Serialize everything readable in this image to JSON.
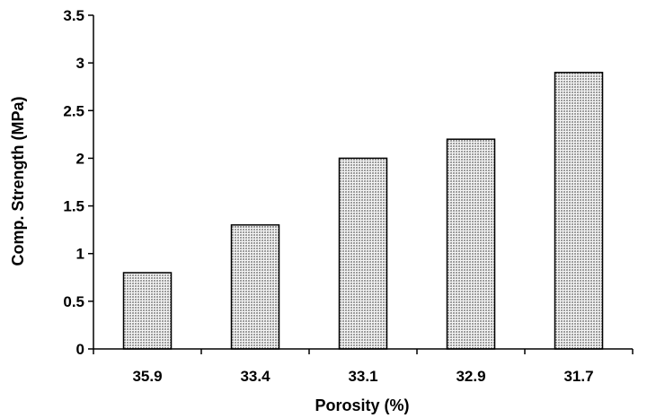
{
  "chart_data": {
    "type": "bar",
    "title": "",
    "xlabel": "Porosity (%)",
    "ylabel": "Comp. Strength (MPa)",
    "categories": [
      "35.9",
      "33.4",
      "33.1",
      "32.9",
      "31.7"
    ],
    "values": [
      0.8,
      1.3,
      2.0,
      2.2,
      2.9
    ],
    "ylim": [
      0,
      3.5
    ],
    "yticks": [
      "0",
      "0.5",
      "1",
      "1.5",
      "2",
      "2.5",
      "3",
      "3.5"
    ],
    "grid": false,
    "legend": "none",
    "bar_fill": "dotted-gray",
    "bar_color": "#b8b8b8",
    "edge_color": "#000000"
  }
}
